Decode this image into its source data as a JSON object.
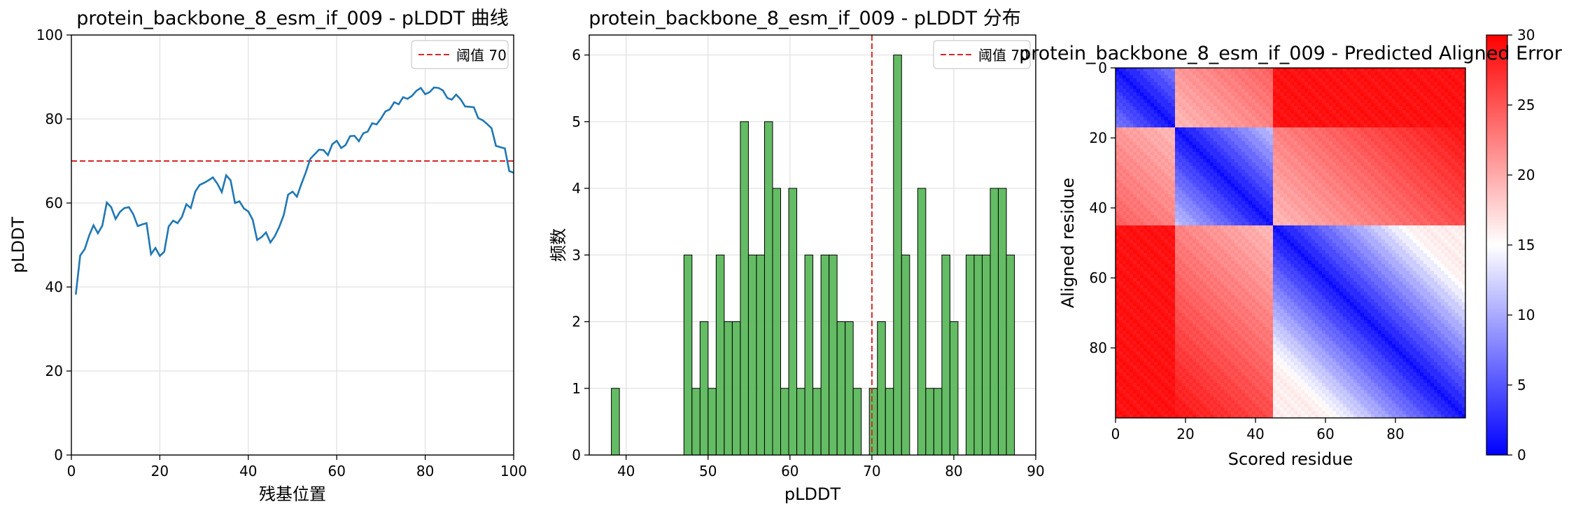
{
  "chart_data": [
    {
      "type": "line",
      "title": "protein_backbone_8_esm_if_009 - pLDDT 曲线",
      "xlabel": "残基位置",
      "ylabel": "pLDDT",
      "xlim": [
        0,
        100
      ],
      "ylim": [
        0,
        100
      ],
      "xticks": [
        "0",
        "20",
        "40",
        "60",
        "80",
        "100"
      ],
      "yticks": [
        "0",
        "20",
        "40",
        "60",
        "80",
        "100"
      ],
      "grid": true,
      "legend": {
        "position": "top-right",
        "entries": [
          "阈值 70"
        ]
      },
      "threshold": 70,
      "line_color": "#1f77b4",
      "threshold_color": "#d62728",
      "x": [
        1,
        2,
        3,
        4,
        5,
        6,
        7,
        8,
        9,
        10,
        11,
        12,
        13,
        14,
        15,
        16,
        17,
        18,
        19,
        20,
        21,
        22,
        23,
        24,
        25,
        26,
        27,
        28,
        29,
        30,
        31,
        32,
        33,
        34,
        35,
        36,
        37,
        38,
        39,
        40,
        41,
        42,
        43,
        44,
        45,
        46,
        47,
        48,
        49,
        50,
        51,
        52,
        53,
        54,
        55,
        56,
        57,
        58,
        59,
        60,
        61,
        62,
        63,
        64,
        65,
        66,
        67,
        68,
        69,
        70,
        71,
        72,
        73,
        74,
        75,
        76,
        77,
        78,
        79,
        80,
        81,
        82,
        83,
        84,
        85,
        86,
        87,
        88,
        89,
        90,
        91,
        92,
        93,
        94,
        95,
        96,
        97,
        98,
        99,
        100
      ],
      "y": [
        38.2,
        47.5,
        49.0,
        52.2,
        54.7,
        52.8,
        54.6,
        60.1,
        59.0,
        56.2,
        57.9,
        58.8,
        59.0,
        57.3,
        54.5,
        54.9,
        55.2,
        47.8,
        49.3,
        47.4,
        48.4,
        54.4,
        55.8,
        55.2,
        56.7,
        59.7,
        58.8,
        62.7,
        64.3,
        64.8,
        65.4,
        66.1,
        64.6,
        62.6,
        66.6,
        65.4,
        60.0,
        60.4,
        58.7,
        58.0,
        56.0,
        51.2,
        51.9,
        53.0,
        50.6,
        52.1,
        54.3,
        57.1,
        62.0,
        62.7,
        61.5,
        64.5,
        67.3,
        70.5,
        71.6,
        72.7,
        72.6,
        71.4,
        74.0,
        74.8,
        73.1,
        73.8,
        75.9,
        76.0,
        74.7,
        76.6,
        77.0,
        79.0,
        78.7,
        80.1,
        81.8,
        82.3,
        84.0,
        83.5,
        85.2,
        84.8,
        85.5,
        86.7,
        87.4,
        85.9,
        86.4,
        87.5,
        87.4,
        86.8,
        85.0,
        84.6,
        85.8,
        84.7,
        83.0,
        82.9,
        82.8,
        80.2,
        79.7,
        78.8,
        77.8,
        73.6,
        73.3,
        73.0,
        67.6,
        67.2
      ]
    },
    {
      "type": "bar",
      "title": "protein_backbone_8_esm_if_009 - pLDDT 分布",
      "xlabel": "pLDDT",
      "ylabel": "频数",
      "xlim": [
        35.5,
        90
      ],
      "ylim": [
        0,
        6.3
      ],
      "xticks": [
        "40",
        "50",
        "60",
        "70",
        "80",
        "90"
      ],
      "yticks": [
        "0",
        "1",
        "2",
        "3",
        "4",
        "5",
        "6"
      ],
      "grid": true,
      "legend": {
        "position": "top-right",
        "entries": [
          "阈值 70"
        ]
      },
      "threshold": 70,
      "bar_color": "#5cb85c",
      "threshold_color": "#d62728",
      "bin_start": 38.2,
      "bin_width": 0.984,
      "counts": [
        1,
        0,
        0,
        0,
        0,
        0,
        0,
        0,
        0,
        3,
        1,
        2,
        1,
        3,
        2,
        2,
        5,
        3,
        3,
        5,
        4,
        1,
        4,
        1,
        3,
        1,
        3,
        3,
        2,
        2,
        1,
        0,
        1,
        2,
        1,
        6,
        3,
        0,
        4,
        1,
        1,
        3,
        2,
        0,
        3,
        3,
        3,
        4,
        4,
        3
      ]
    },
    {
      "type": "heatmap",
      "title": "protein_backbone_8_esm_if_009 - Predicted Aligned Error",
      "xlabel": "Scored residue",
      "ylabel": "Aligned residue",
      "xticks": [
        "0",
        "20",
        "40",
        "60",
        "80"
      ],
      "yticks": [
        "0",
        "20",
        "40",
        "60",
        "80"
      ],
      "colorbar_ticks": [
        "0",
        "5",
        "10",
        "15",
        "20",
        "25",
        "30"
      ],
      "colormap": "bwr",
      "vmin": 0,
      "vmax": 30,
      "n_residues": 100,
      "domains": [
        [
          0,
          16
        ],
        [
          17,
          44
        ],
        [
          45,
          99
        ]
      ]
    }
  ]
}
